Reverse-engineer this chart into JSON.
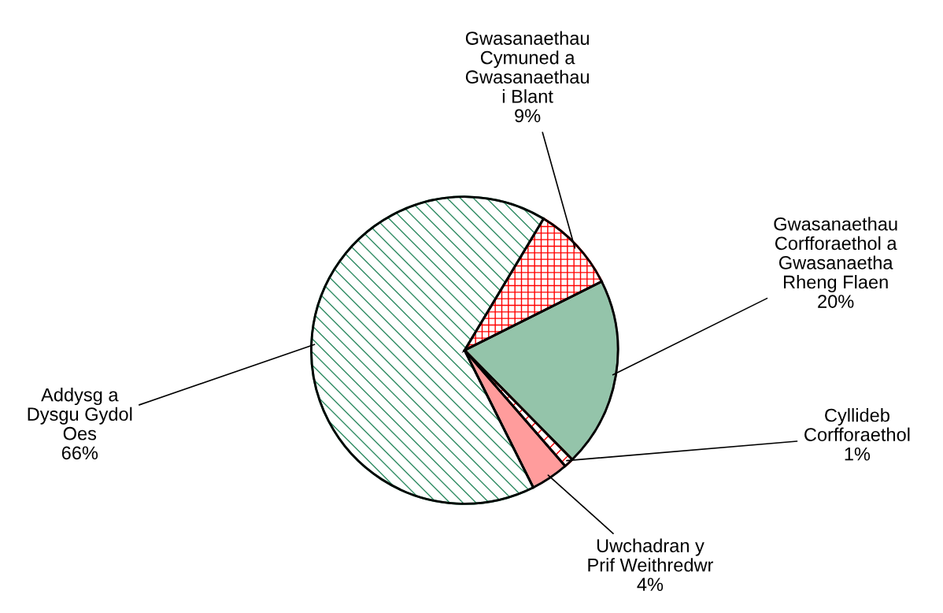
{
  "chart_data": {
    "type": "pie",
    "categories": [
      "Gwasanaethau\nCymuned a\nGwasanaethau\ni Blant",
      "Gwasanaethau\nCorfforaethol a\nGwasanaetha\nRheng Flaen",
      "Cyllideb\nCorfforaethol",
      "Uwchadran y\nPrif Weithredwr",
      "Addysg a\nDysgu Gydol\nOes"
    ],
    "values": [
      9,
      20,
      1,
      4,
      66
    ],
    "value_labels": [
      "9%",
      "20%",
      "1%",
      "4%",
      "66%"
    ],
    "colors": [
      "#ff0000",
      "#3d9466",
      "#ff0000",
      "#ff4d4d",
      "#2e8b62"
    ],
    "legend": false
  }
}
